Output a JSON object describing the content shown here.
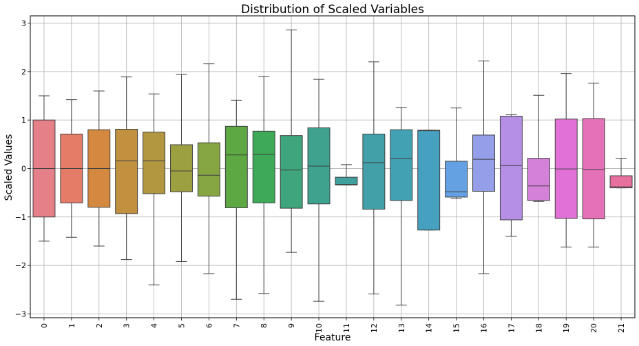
{
  "chart_data": {
    "type": "box",
    "title": "Distribution of Scaled Variables",
    "xlabel": "Feature",
    "ylabel": "Scaled Values",
    "ylim": [
      -3.08,
      3.15
    ],
    "yticks": [
      -3,
      -2,
      -1,
      0,
      1,
      2,
      3
    ],
    "grid": true,
    "categories": [
      "0",
      "1",
      "2",
      "3",
      "4",
      "5",
      "6",
      "7",
      "8",
      "9",
      "10",
      "11",
      "12",
      "13",
      "14",
      "15",
      "16",
      "17",
      "18",
      "19",
      "20",
      "21"
    ],
    "boxes": [
      {
        "whislo": -1.5,
        "q1": -1.0,
        "median": 0.0,
        "q3": 1.0,
        "whishi": 1.5
      },
      {
        "whislo": -1.42,
        "q1": -0.71,
        "median": 0.0,
        "q3": 0.71,
        "whishi": 1.42
      },
      {
        "whislo": -1.6,
        "q1": -0.8,
        "median": 0.0,
        "q3": 0.8,
        "whishi": 1.6
      },
      {
        "whislo": -1.88,
        "q1": -0.93,
        "median": 0.16,
        "q3": 0.81,
        "whishi": 1.89
      },
      {
        "whislo": -2.4,
        "q1": -0.52,
        "median": 0.16,
        "q3": 0.75,
        "whishi": 1.54
      },
      {
        "whislo": -1.92,
        "q1": -0.48,
        "median": -0.05,
        "q3": 0.49,
        "whishi": 1.94
      },
      {
        "whislo": -2.17,
        "q1": -0.57,
        "median": -0.14,
        "q3": 0.53,
        "whishi": 2.16
      },
      {
        "whislo": -2.7,
        "q1": -0.81,
        "median": 0.28,
        "q3": 0.87,
        "whishi": 1.41
      },
      {
        "whislo": -2.58,
        "q1": -0.71,
        "median": 0.29,
        "q3": 0.77,
        "whishi": 1.9
      },
      {
        "whislo": -1.73,
        "q1": -0.82,
        "median": -0.03,
        "q3": 0.68,
        "whishi": 2.86
      },
      {
        "whislo": -2.74,
        "q1": -0.73,
        "median": 0.05,
        "q3": 0.84,
        "whishi": 1.84
      },
      {
        "whislo": -0.34,
        "q1": -0.34,
        "median": -0.33,
        "q3": -0.18,
        "whishi": 0.08
      },
      {
        "whislo": -2.59,
        "q1": -0.84,
        "median": 0.12,
        "q3": 0.71,
        "whishi": 2.2
      },
      {
        "whislo": -2.82,
        "q1": -0.66,
        "median": 0.21,
        "q3": 0.8,
        "whishi": 1.26
      },
      {
        "whislo": -1.27,
        "q1": -1.27,
        "median": 0.78,
        "q3": 0.79,
        "whishi": 0.79
      },
      {
        "whislo": -0.62,
        "q1": -0.59,
        "median": -0.48,
        "q3": 0.15,
        "whishi": 1.25
      },
      {
        "whislo": -2.17,
        "q1": -0.47,
        "median": 0.19,
        "q3": 0.69,
        "whishi": 2.22
      },
      {
        "whislo": -1.4,
        "q1": -1.06,
        "median": 0.06,
        "q3": 1.08,
        "whishi": 1.11
      },
      {
        "whislo": -0.68,
        "q1": -0.66,
        "median": -0.36,
        "q3": 0.21,
        "whishi": 1.51
      },
      {
        "whislo": -1.62,
        "q1": -1.03,
        "median": -0.01,
        "q3": 1.02,
        "whishi": 1.96
      },
      {
        "whislo": -1.62,
        "q1": -1.04,
        "median": -0.02,
        "q3": 1.03,
        "whishi": 1.76
      },
      {
        "whislo": -0.4,
        "q1": -0.4,
        "median": -0.38,
        "q3": -0.15,
        "whishi": 0.21
      }
    ],
    "colors": [
      "#e58089",
      "#e57c68",
      "#d5883f",
      "#c1913f",
      "#b29640",
      "#9ca041",
      "#86a543",
      "#5ea844",
      "#3eaa57",
      "#3ea57c",
      "#3ea28f",
      "#409f9f",
      "#41a0a8",
      "#42a1b3",
      "#46a1c1",
      "#64a1e3",
      "#949ee9",
      "#b58fe6",
      "#d481d9",
      "#e171d6",
      "#e571b8",
      "#e8709f"
    ]
  }
}
